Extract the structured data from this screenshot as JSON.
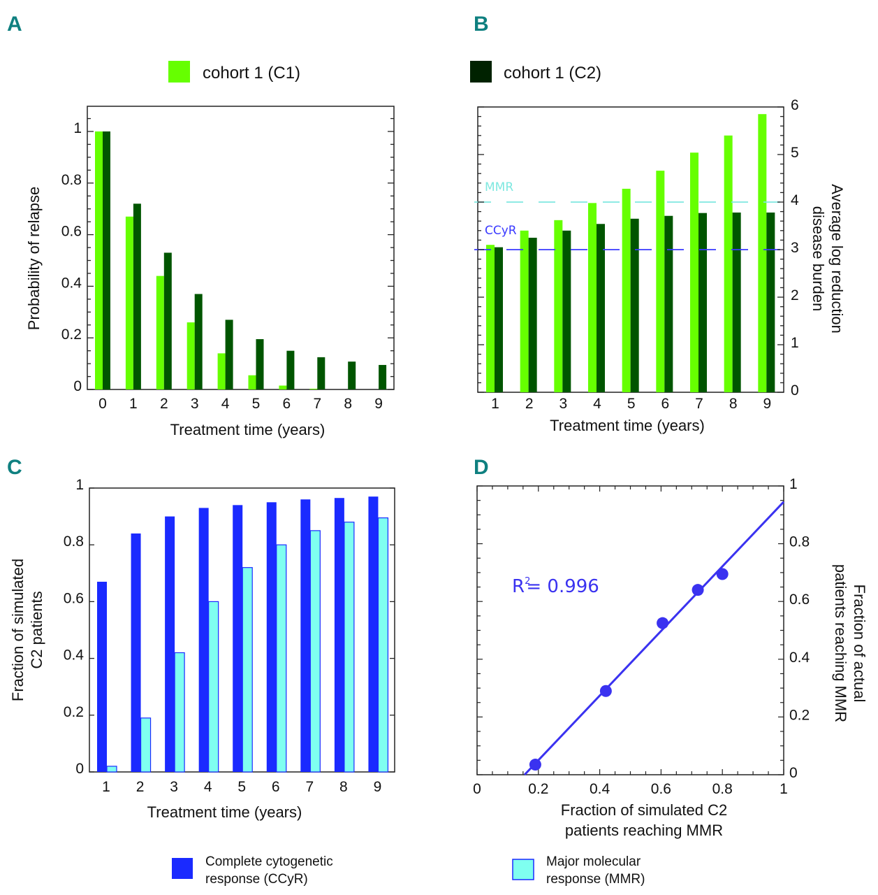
{
  "colors": {
    "panel_label": "#0f8080",
    "c1_green": "#66ff00",
    "c2_darkgreen": "#005500",
    "ccyr_blue": "#1a2aff",
    "mmr_cyan": "#7ffff0",
    "mmr_line": "#7fe8e0",
    "ccyr_line": "#3a3aff",
    "scatter_blue": "#3a32f0"
  },
  "legend_top": [
    {
      "label": "cohort 1 (C1)",
      "color": "#66ff00"
    },
    {
      "label": "cohort 1 (C2)",
      "color": "#002200"
    }
  ],
  "legend_bottom": [
    {
      "line1": "Complete cytogenetic",
      "line2": "response (CCyR)",
      "color": "#1a2aff"
    },
    {
      "line1": "Major molecular",
      "line2": "response (MMR)",
      "color": "#7ffff0"
    }
  ],
  "chart_data": [
    {
      "panel": "A",
      "type": "bar",
      "title": "",
      "xlabel": "Treatment time (years)",
      "ylabel": "Probability of relapse",
      "categories": [
        "0",
        "1",
        "2",
        "3",
        "4",
        "5",
        "6",
        "7",
        "8",
        "9"
      ],
      "ylim": [
        0,
        1.1
      ],
      "yticks": [
        0,
        0.2,
        0.4,
        0.6,
        0.8,
        1
      ],
      "ytick_labels": [
        "0",
        "0.2",
        "0.4",
        "0.6",
        "0.8",
        "1"
      ],
      "series": [
        {
          "name": "cohort 1 (C1)",
          "color": "#66ff00",
          "values": [
            1.0,
            0.67,
            0.44,
            0.26,
            0.14,
            0.055,
            0.015,
            0.003,
            0,
            0
          ]
        },
        {
          "name": "cohort 1 (C2)",
          "color": "#005500",
          "values": [
            1.0,
            0.72,
            0.53,
            0.37,
            0.27,
            0.195,
            0.15,
            0.125,
            0.108,
            0.095
          ]
        }
      ],
      "grid": false
    },
    {
      "panel": "B",
      "type": "bar",
      "title": "",
      "xlabel": "Treatment time (years)",
      "ylabel": "Average log reduction disease burden",
      "ylabel_lines": [
        "Average log reduction",
        "disease burden"
      ],
      "yaxis_side": "right",
      "categories": [
        "1",
        "2",
        "3",
        "4",
        "5",
        "6",
        "7",
        "8",
        "9"
      ],
      "ylim": [
        0,
        6
      ],
      "yticks": [
        0,
        1,
        2,
        3,
        4,
        5,
        6
      ],
      "ytick_labels": [
        "0",
        "1",
        "2",
        "3",
        "4",
        "5",
        "6"
      ],
      "series": [
        {
          "name": "cohort 1 (C1)",
          "color": "#66ff00",
          "values": [
            3.1,
            3.4,
            3.62,
            3.98,
            4.28,
            4.66,
            5.04,
            5.4,
            5.85
          ]
        },
        {
          "name": "cohort 1 (C2)",
          "color": "#005500",
          "values": [
            3.05,
            3.25,
            3.4,
            3.54,
            3.65,
            3.71,
            3.77,
            3.78,
            3.78
          ]
        }
      ],
      "reference_lines": [
        {
          "label": "MMR",
          "value": 4,
          "color": "#7fe8e0",
          "style": "dashed"
        },
        {
          "label": "CCyR",
          "value": 3,
          "color": "#3a3aff",
          "style": "dashed"
        }
      ],
      "grid": false
    },
    {
      "panel": "C",
      "type": "bar",
      "title": "",
      "xlabel": "Treatment time (years)",
      "ylabel": "Fraction of simulated C2 patients",
      "ylabel_lines": [
        "Fraction of simulated",
        "C2 patients"
      ],
      "categories": [
        "1",
        "2",
        "3",
        "4",
        "5",
        "6",
        "7",
        "8",
        "9"
      ],
      "ylim": [
        0,
        1
      ],
      "yticks": [
        0,
        0.2,
        0.4,
        0.6,
        0.8,
        1
      ],
      "ytick_labels": [
        "0",
        "0.2",
        "0.4",
        "0.6",
        "0.8",
        "1"
      ],
      "series": [
        {
          "name": "Complete cytogenetic response (CCyR)",
          "color": "#1a2aff",
          "values": [
            0.67,
            0.84,
            0.9,
            0.93,
            0.94,
            0.95,
            0.96,
            0.965,
            0.97
          ]
        },
        {
          "name": "Major molecular response (MMR)",
          "color": "#7ffff0",
          "values": [
            0.02,
            0.19,
            0.42,
            0.6,
            0.72,
            0.8,
            0.85,
            0.88,
            0.895
          ]
        }
      ],
      "legend": "bottom",
      "grid": false
    },
    {
      "panel": "D",
      "type": "scatter",
      "title": "",
      "xlabel": "Fraction of simulated C2 patients reaching MMR",
      "xlabel_lines": [
        "Fraction of simulated C2",
        "patients reaching MMR"
      ],
      "ylabel": "Fraction of actual patients reaching MMR",
      "ylabel_lines": [
        "Fraction of actual",
        "patients reaching MMR"
      ],
      "yaxis_side": "right",
      "xlim": [
        0,
        1
      ],
      "ylim": [
        0,
        1
      ],
      "xticks": [
        0,
        0.2,
        0.4,
        0.6,
        0.8,
        1
      ],
      "xtick_labels": [
        "0",
        "0.2",
        "0.4",
        "0.6",
        "0.8",
        "1"
      ],
      "yticks": [
        0,
        0.2,
        0.4,
        0.6,
        0.8,
        1
      ],
      "ytick_labels": [
        "0",
        "0.2",
        "0.4",
        "0.6",
        "0.8",
        "1"
      ],
      "points": [
        {
          "x": 0.19,
          "y": 0.035
        },
        {
          "x": 0.42,
          "y": 0.29
        },
        {
          "x": 0.605,
          "y": 0.525
        },
        {
          "x": 0.72,
          "y": 0.64
        },
        {
          "x": 0.8,
          "y": 0.695
        }
      ],
      "fit_line": {
        "x": [
          0.155,
          1.0
        ],
        "y": [
          0.0,
          0.945
        ]
      },
      "annotation": {
        "text": "R",
        "sup": "2",
        "rest": "= 0.996",
        "x": 0.1,
        "y": 0.64
      },
      "grid": false
    }
  ]
}
